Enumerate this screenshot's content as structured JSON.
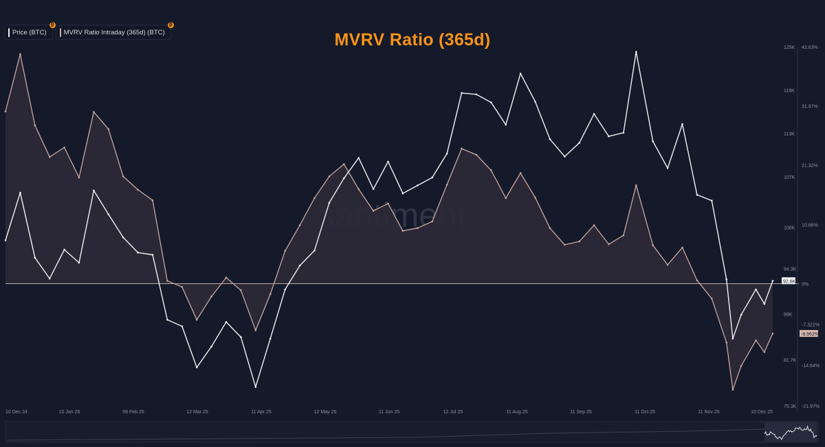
{
  "legend": {
    "price_label": "Price (BTC)",
    "mvrv_label": "MVRV Ratio Intraday (365d) (BTC)",
    "badge_glyph": "₿"
  },
  "watermark": "santiment·",
  "colors": {
    "background": "#141a2a",
    "title": "#f7931a",
    "price_line": "#f2f2f2",
    "mvrv_line": "#c9a9a1",
    "mvrv_fill": "#2c2837",
    "zero_line": "#dcd0cc",
    "badge": "#f7931a"
  },
  "chart_data": {
    "type": "line",
    "title": "MVRV Ratio (365d)",
    "x_tick_labels": [
      "10 Dec 24",
      "10 Jan 25",
      "09 Feb 25",
      "12 Mar 25",
      "11 Apr 25",
      "12 May 25",
      "11 Jun 25",
      "12 Jul 25",
      "11 Aug 25",
      "11 Sep 25",
      "11 Oct 25",
      "11 Nov 25",
      "10 Dec 25"
    ],
    "x_range": [
      "2024-12-10",
      "2025-12-10"
    ],
    "price_axis": {
      "side": "right-inner",
      "tick_labels": [
        "125K",
        "119K",
        "113K",
        "107K",
        "100K",
        "94.3K",
        "88K",
        "81.7K",
        "75.3K"
      ],
      "range": [
        75300,
        125000
      ],
      "current_label": "92.6K"
    },
    "mvrv_axis": {
      "side": "right-outer",
      "tick_labels": [
        "42.63%",
        "31.97%",
        "21.32%",
        "10.66%",
        "0%",
        "-7.322%",
        "-14.64%",
        "-21.97%"
      ],
      "range": [
        -21.97,
        42.63
      ],
      "current_label": "-8.962%"
    },
    "grid": false,
    "legend_position": "top-left",
    "series": [
      {
        "name": "Price (BTC)",
        "unit": "USD",
        "x": [
          "2024-12-10",
          "2024-12-17",
          "2024-12-24",
          "2024-12-31",
          "2025-01-07",
          "2025-01-14",
          "2025-01-21",
          "2025-01-28",
          "2025-02-04",
          "2025-02-11",
          "2025-02-18",
          "2025-02-25",
          "2025-03-04",
          "2025-03-11",
          "2025-03-18",
          "2025-03-25",
          "2025-04-01",
          "2025-04-08",
          "2025-04-15",
          "2025-04-22",
          "2025-04-29",
          "2025-05-06",
          "2025-05-13",
          "2025-05-20",
          "2025-05-27",
          "2025-06-03",
          "2025-06-10",
          "2025-06-17",
          "2025-06-24",
          "2025-07-01",
          "2025-07-08",
          "2025-07-15",
          "2025-07-22",
          "2025-07-29",
          "2025-08-05",
          "2025-08-12",
          "2025-08-19",
          "2025-08-26",
          "2025-09-02",
          "2025-09-09",
          "2025-09-16",
          "2025-09-23",
          "2025-09-30",
          "2025-10-06",
          "2025-10-14",
          "2025-10-21",
          "2025-10-28",
          "2025-11-04",
          "2025-11-11",
          "2025-11-18",
          "2025-11-21",
          "2025-11-25",
          "2025-12-02",
          "2025-12-06",
          "2025-12-10"
        ],
        "values": [
          98200,
          104800,
          95800,
          92900,
          96900,
          95100,
          105100,
          101800,
          98600,
          96500,
          96200,
          87200,
          86300,
          80600,
          83500,
          86900,
          84800,
          77900,
          84600,
          91400,
          94700,
          96800,
          103400,
          106800,
          109600,
          105300,
          109100,
          104700,
          105800,
          106900,
          110200,
          118600,
          118400,
          117300,
          114200,
          121300,
          117400,
          112200,
          109800,
          111700,
          115700,
          112600,
          113100,
          124300,
          111900,
          108200,
          114300,
          104500,
          103700,
          92800,
          84600,
          87900,
          91400,
          89400,
          92600
        ]
      },
      {
        "name": "MVRV Ratio Intraday (365d) (BTC)",
        "unit": "%",
        "x": [
          "2024-12-10",
          "2024-12-17",
          "2024-12-24",
          "2024-12-31",
          "2025-01-07",
          "2025-01-14",
          "2025-01-21",
          "2025-01-28",
          "2025-02-04",
          "2025-02-11",
          "2025-02-18",
          "2025-02-25",
          "2025-03-04",
          "2025-03-11",
          "2025-03-18",
          "2025-03-25",
          "2025-04-01",
          "2025-04-08",
          "2025-04-15",
          "2025-04-22",
          "2025-04-29",
          "2025-05-06",
          "2025-05-13",
          "2025-05-20",
          "2025-05-27",
          "2025-06-03",
          "2025-06-10",
          "2025-06-17",
          "2025-06-24",
          "2025-07-01",
          "2025-07-08",
          "2025-07-15",
          "2025-07-22",
          "2025-07-29",
          "2025-08-05",
          "2025-08-12",
          "2025-08-19",
          "2025-08-26",
          "2025-09-02",
          "2025-09-09",
          "2025-09-16",
          "2025-09-23",
          "2025-09-30",
          "2025-10-06",
          "2025-10-14",
          "2025-10-21",
          "2025-10-28",
          "2025-11-04",
          "2025-11-11",
          "2025-11-18",
          "2025-11-21",
          "2025-11-25",
          "2025-12-02",
          "2025-12-06",
          "2025-12-10"
        ],
        "values": [
          31.0,
          41.3,
          28.5,
          22.8,
          24.5,
          19.1,
          30.9,
          27.8,
          19.3,
          16.9,
          15.0,
          0.5,
          -0.6,
          -6.5,
          -2.3,
          1.1,
          -1.2,
          -8.4,
          -1.9,
          5.9,
          10.5,
          15.4,
          19.3,
          21.5,
          17.0,
          13.1,
          14.4,
          9.5,
          10.0,
          11.2,
          17.8,
          24.3,
          23.2,
          20.4,
          15.4,
          19.9,
          15.5,
          10.0,
          7.0,
          7.6,
          10.5,
          7.1,
          8.7,
          17.7,
          6.9,
          3.4,
          6.5,
          0.6,
          -2.7,
          -10.6,
          -19.1,
          -14.8,
          -10.2,
          -12.3,
          -8.96
        ]
      }
    ]
  }
}
